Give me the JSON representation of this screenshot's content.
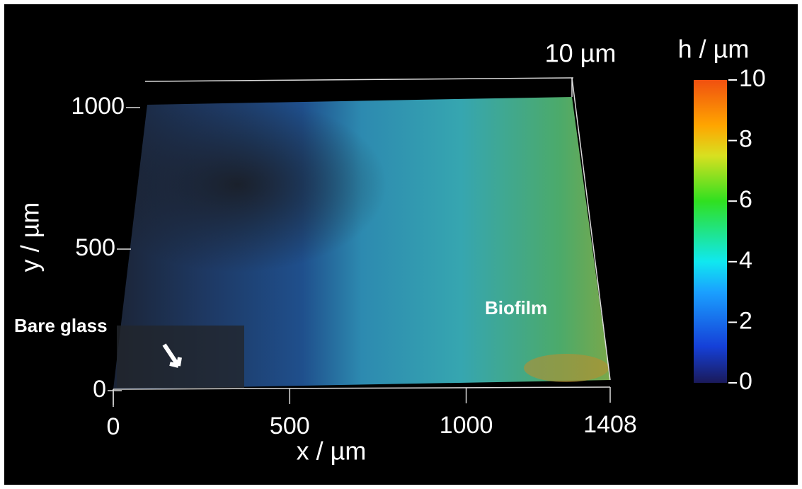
{
  "chart_data": {
    "type": "surface",
    "xlabel": "x / µm",
    "ylabel": "y / µm",
    "colorbar_label": "h / µm",
    "zscale_label": "10 µm",
    "xlim": [
      0,
      1408
    ],
    "xticks": [
      0,
      500,
      1000,
      1408
    ],
    "ylim": [
      0,
      1000
    ],
    "yticks": [
      0,
      500,
      1000
    ],
    "clim": [
      0,
      10
    ],
    "cticks": [
      0,
      2,
      4,
      6,
      8,
      10
    ],
    "annotations": [
      "Bare glass",
      "Biofilm"
    ]
  }
}
